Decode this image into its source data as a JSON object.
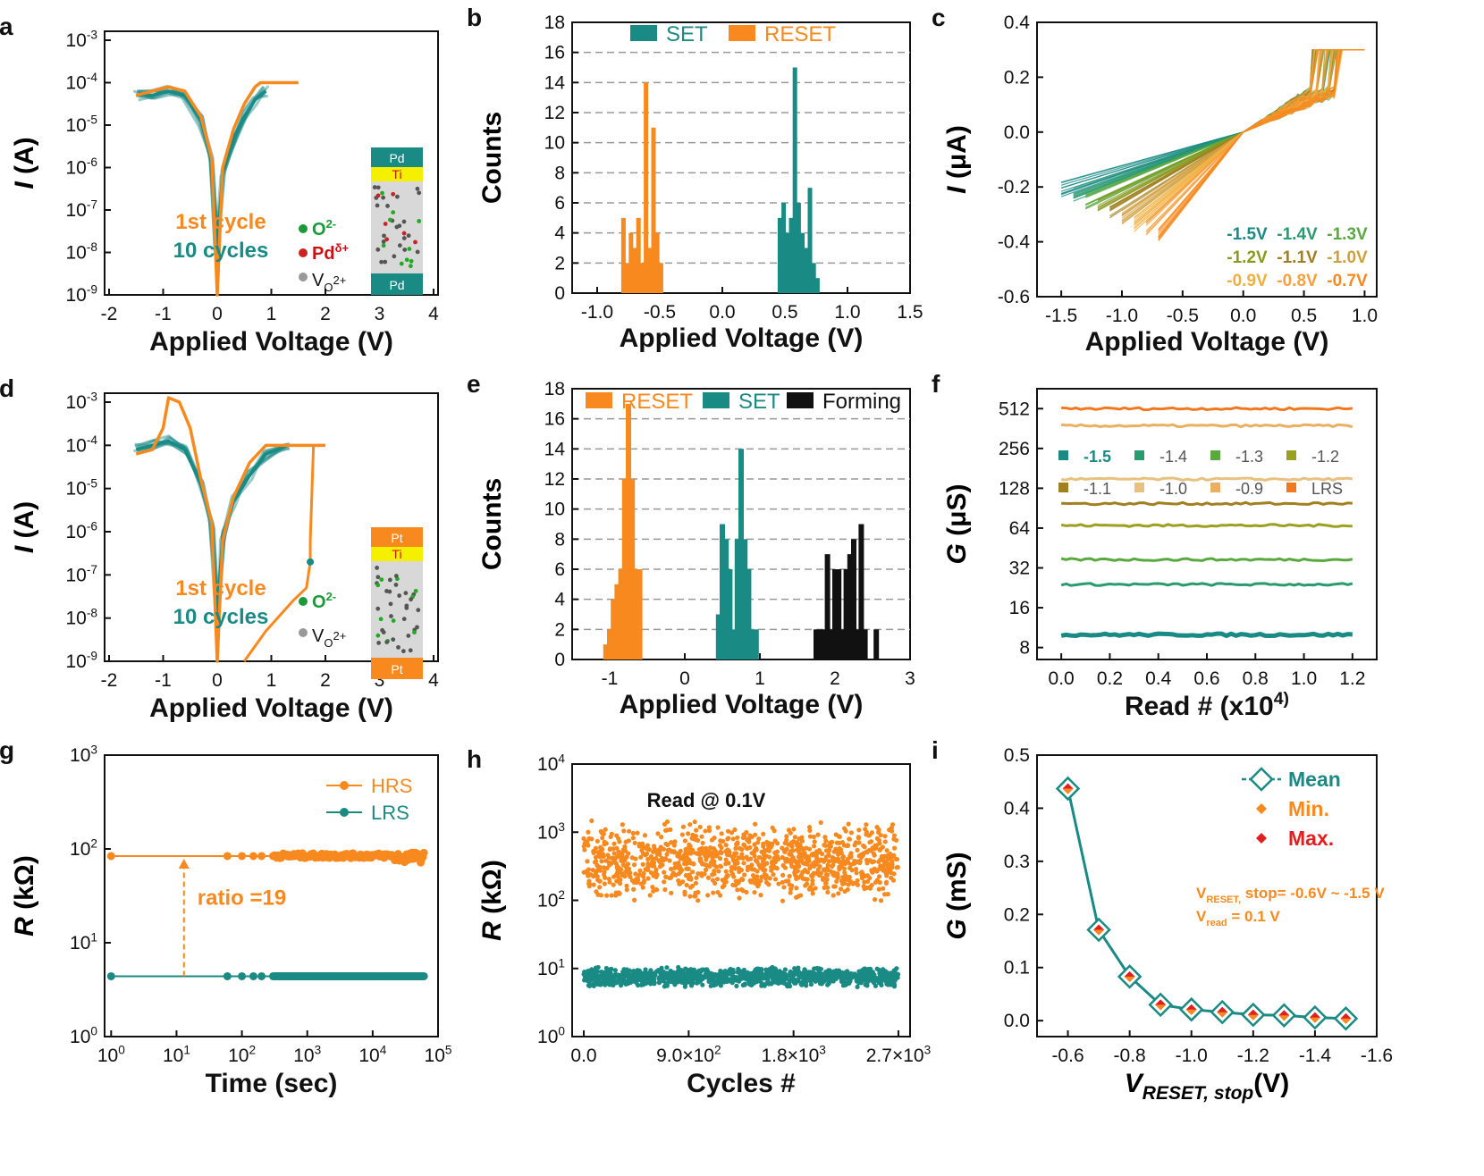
{
  "colors": {
    "teal": "#1a8a85",
    "orange": "#f7891f",
    "red": "#e02020",
    "black": "#111111"
  },
  "panels": [
    {
      "letter": "a",
      "type": "line-log",
      "xlabel": "Applied Voltage (V)",
      "ylabel": "I (A)",
      "xticks": [
        "-2",
        "-1",
        "0",
        "1",
        "2",
        "3",
        "4"
      ],
      "yticks": [
        "10^-9",
        "10^-8",
        "10^-7",
        "10^-6",
        "10^-5",
        "10^-4",
        "10^-3"
      ],
      "legend": [
        "1st cycle",
        "10 cycles"
      ],
      "inset_layers": [
        "Pd",
        "Ti",
        "Pd"
      ],
      "inset_legend": [
        "O^2-",
        "Pd^δ+",
        "V_O^2+"
      ]
    },
    {
      "letter": "b",
      "type": "bar",
      "xlabel": "Applied Voltage (V)",
      "ylabel": "Counts",
      "xticks": [
        "-1.0",
        "-0.5",
        "0.0",
        "0.5",
        "1.0",
        "1.5"
      ],
      "yticks": [
        "0",
        "2",
        "4",
        "6",
        "8",
        "10",
        "12",
        "14",
        "16",
        "18"
      ],
      "legend": [
        "SET",
        "RESET"
      ]
    },
    {
      "letter": "c",
      "type": "line",
      "xlabel": "Applied Voltage (V)",
      "ylabel": "I (μA)",
      "xticks": [
        "-1.5",
        "-1.0",
        "-0.5",
        "0.0",
        "0.5",
        "1.0"
      ],
      "yticks": [
        "-0.6",
        "-0.4",
        "-0.2",
        "0.0",
        "0.2",
        "0.4"
      ],
      "legend": [
        "-1.5V",
        "-1.4V",
        "-1.3V",
        "-1.2V",
        "-1.1V",
        "-1.0V",
        "-0.9V",
        "-0.8V",
        "-0.7V"
      ]
    },
    {
      "letter": "d",
      "type": "line-log",
      "xlabel": "Applied Voltage (V)",
      "ylabel": "I (A)",
      "xticks": [
        "-2",
        "-1",
        "0",
        "1",
        "2",
        "3",
        "4"
      ],
      "yticks": [
        "10^-9",
        "10^-8",
        "10^-7",
        "10^-6",
        "10^-5",
        "10^-4",
        "10^-3"
      ],
      "legend": [
        "1st cycle",
        "10 cycles"
      ],
      "inset_layers": [
        "Pt",
        "Ti",
        "Pt"
      ],
      "inset_legend": [
        "O^2-",
        "V_O^2+"
      ]
    },
    {
      "letter": "e",
      "type": "bar",
      "xlabel": "Applied Voltage (V)",
      "ylabel": "Counts",
      "xticks": [
        "-1",
        "0",
        "1",
        "2",
        "3"
      ],
      "yticks": [
        "0",
        "2",
        "4",
        "6",
        "8",
        "10",
        "12",
        "14",
        "16",
        "18"
      ],
      "legend": [
        "RESET",
        "SET",
        "Forming"
      ]
    },
    {
      "letter": "f",
      "type": "scatter-log",
      "xlabel": "Read # (x10^4)",
      "ylabel": "G (μS)",
      "xticks": [
        "0.0",
        "0.2",
        "0.4",
        "0.6",
        "0.8",
        "1.0",
        "1.2"
      ],
      "yticks": [
        "8",
        "16",
        "32",
        "64",
        "128",
        "256",
        "512"
      ],
      "legend": [
        "-1.5",
        "-1.4",
        "-1.3",
        "-1.2",
        "-1.1",
        "-1.0",
        "-0.9",
        "LRS"
      ]
    },
    {
      "letter": "g",
      "type": "line-log",
      "xlabel": "Time (sec)",
      "ylabel": "R (kΩ)",
      "xticks": [
        "10^0",
        "10^1",
        "10^2",
        "10^3",
        "10^4",
        "10^5"
      ],
      "yticks": [
        "10^0",
        "10^1",
        "10^2",
        "10^3"
      ],
      "legend": [
        "HRS",
        "LRS"
      ],
      "annotation": "ratio =19"
    },
    {
      "letter": "h",
      "type": "scatter-log",
      "xlabel": "Cycles #",
      "ylabel": "R (kΩ)",
      "xticks": [
        "0.0",
        "9.0×10^2",
        "1.8×10^3",
        "2.7×10^3"
      ],
      "yticks": [
        "10^0",
        "10^1",
        "10^2",
        "10^3",
        "10^4"
      ],
      "annotation": "Read @ 0.1V"
    },
    {
      "letter": "i",
      "type": "line",
      "xlabel": "V_RESET, stop(V)",
      "ylabel": "G (mS)",
      "xticks": [
        "-0.6",
        "-0.8",
        "-1.0",
        "-1.2",
        "-1.4",
        "-1.6"
      ],
      "yticks": [
        "0.0",
        "0.1",
        "0.2",
        "0.3",
        "0.4",
        "0.5"
      ],
      "legend": [
        "Mean",
        "Min.",
        "Max."
      ],
      "annotation": [
        "V_RESET, stop=  -0.6V ~ -1.5 V",
        "V_read = 0.1 V"
      ]
    }
  ],
  "chart_data": [
    {
      "panel": "a",
      "type": "line",
      "xlim": [
        -2,
        4
      ],
      "ylim_log10": [
        -9,
        -3
      ],
      "series": [
        {
          "name": "1st cycle",
          "color": "orange",
          "x": [
            -1.5,
            -1.2,
            -0.9,
            -0.6,
            -0.3,
            -0.1,
            0,
            0.1,
            0.3,
            0.5,
            0.7,
            0.8,
            1.5
          ],
          "log10_y": [
            -4.3,
            -4.2,
            -4.1,
            -4.2,
            -4.8,
            -5.8,
            -9,
            -6.0,
            -5.1,
            -4.5,
            -4.1,
            -4.0,
            -4.0
          ]
        },
        {
          "name": "10 cycles",
          "color": "teal",
          "x": [
            -1.5,
            -1.2,
            -0.9,
            -0.6,
            -0.3,
            -0.1,
            0,
            0.1,
            0.3,
            0.5,
            0.7,
            0.9
          ],
          "log10_y": [
            -4.3,
            -4.3,
            -4.2,
            -4.3,
            -4.9,
            -5.8,
            -8,
            -6.1,
            -5.3,
            -4.8,
            -4.4,
            -4.2
          ]
        }
      ]
    },
    {
      "panel": "b",
      "type": "bar",
      "xlim": [
        -1.2,
        1.5
      ],
      "ylim": [
        0,
        18
      ],
      "series": [
        {
          "name": "RESET",
          "color": "orange",
          "x": [
            -0.79,
            -0.76,
            -0.73,
            -0.7,
            -0.67,
            -0.64,
            -0.61,
            -0.58,
            -0.55,
            -0.52,
            -0.49
          ],
          "values": [
            5,
            2,
            4,
            3,
            5,
            2,
            14,
            3,
            11,
            4,
            2
          ]
        },
        {
          "name": "SET",
          "color": "teal",
          "x": [
            0.46,
            0.49,
            0.52,
            0.55,
            0.58,
            0.61,
            0.64,
            0.67,
            0.7,
            0.73,
            0.76
          ],
          "values": [
            5,
            6,
            4,
            5,
            15,
            6,
            4,
            3,
            7,
            2,
            1
          ]
        }
      ]
    },
    {
      "panel": "c",
      "type": "line",
      "xlim": [
        -1.7,
        1.1
      ],
      "ylim": [
        -0.6,
        0.4
      ],
      "series_names": [
        "-1.5V",
        "-1.4V",
        "-1.3V",
        "-1.2V",
        "-1.1V",
        "-1.0V",
        "-0.9V",
        "-0.8V",
        "-0.7V"
      ],
      "reset_stop_V": [
        -1.5,
        -1.4,
        -1.3,
        -1.2,
        -1.1,
        -1.0,
        -0.9,
        -0.8,
        -0.7
      ],
      "compliance_uA": 0.3
    },
    {
      "panel": "d",
      "type": "line",
      "xlim": [
        -2,
        4
      ],
      "ylim_log10": [
        -9,
        -3
      ],
      "series": [
        {
          "name": "1st cycle",
          "color": "orange",
          "x": [
            -1.5,
            -1.2,
            -1.0,
            -0.9,
            -0.7,
            -0.5,
            -0.3,
            -0.1,
            0,
            0.1,
            0.3,
            0.6,
            0.9,
            1.7,
            1.75,
            2.0
          ],
          "log10_y": [
            -4.2,
            -4.1,
            -3.6,
            -2.9,
            -3.0,
            -3.6,
            -4.8,
            -5.8,
            -9,
            -6.2,
            -5.2,
            -4.4,
            -4.0,
            -4.0,
            -4.0,
            -4.0
          ]
        },
        {
          "name": "10 cycles",
          "color": "teal",
          "x": [
            -1.5,
            -1.2,
            -0.9,
            -0.6,
            -0.3,
            -0.1,
            0,
            0.1,
            0.3,
            0.6,
            0.9,
            1.3
          ],
          "log10_y": [
            -4.1,
            -4.0,
            -3.9,
            -4.1,
            -4.9,
            -5.8,
            -8,
            -6.1,
            -5.3,
            -4.7,
            -4.2,
            -4.0
          ]
        }
      ]
    },
    {
      "panel": "e",
      "type": "bar",
      "xlim": [
        -1.5,
        3
      ],
      "ylim": [
        0,
        18
      ],
      "series": [
        {
          "name": "RESET",
          "color": "orange",
          "x": [
            -1.05,
            -1.0,
            -0.95,
            -0.9,
            -0.85,
            -0.8,
            -0.75,
            -0.7,
            -0.65,
            -0.6
          ],
          "values": [
            1,
            2,
            4,
            5,
            6,
            12,
            17,
            12,
            6,
            6
          ]
        },
        {
          "name": "SET",
          "color": "teal",
          "x": [
            0.45,
            0.5,
            0.55,
            0.6,
            0.65,
            0.7,
            0.75,
            0.8,
            0.85,
            0.9,
            0.95
          ],
          "values": [
            3,
            9,
            8,
            6,
            2,
            8,
            14,
            8,
            6,
            2,
            2
          ]
        },
        {
          "name": "Forming",
          "color": "black",
          "x": [
            1.75,
            1.8,
            1.85,
            1.9,
            1.95,
            2.0,
            2.05,
            2.1,
            2.15,
            2.2,
            2.25,
            2.3,
            2.35,
            2.4,
            2.55
          ],
          "values": [
            2,
            2,
            2,
            7,
            2,
            6,
            6,
            2,
            6,
            7,
            8,
            2,
            9,
            2,
            2
          ]
        }
      ]
    },
    {
      "panel": "f",
      "type": "scatter",
      "xlim": [
        -0.1,
        1.3
      ],
      "ylim_log2": [
        2.7,
        9.5
      ],
      "series": [
        {
          "name": "-1.5",
          "G_uS": 10
        },
        {
          "name": "-1.4",
          "G_uS": 24
        },
        {
          "name": "-1.3",
          "G_uS": 37
        },
        {
          "name": "-1.2",
          "G_uS": 67
        },
        {
          "name": "-1.1",
          "G_uS": 98
        },
        {
          "name": "-1.0",
          "G_uS": 150
        },
        {
          "name": "-0.9",
          "G_uS": 380
        },
        {
          "name": "LRS",
          "G_uS": 512
        }
      ]
    },
    {
      "panel": "g",
      "type": "line",
      "xlim_log10": [
        -0.1,
        5
      ],
      "ylim_log10": [
        0,
        3
      ],
      "series": [
        {
          "name": "HRS",
          "color": "orange",
          "R_kOhm": 84
        },
        {
          "name": "LRS",
          "color": "teal",
          "R_kOhm": 4.4
        }
      ],
      "ratio": 19
    },
    {
      "panel": "h",
      "type": "scatter",
      "xlim": [
        -100,
        2800
      ],
      "ylim_log10": [
        0,
        4
      ],
      "series": [
        {
          "name": "HRS",
          "color": "orange",
          "median_R_kOhm": 380
        },
        {
          "name": "LRS",
          "color": "teal",
          "median_R_kOhm": 7.5
        }
      ],
      "cycles": 2700
    },
    {
      "panel": "i",
      "type": "line",
      "xlim": [
        -0.5,
        -1.6
      ],
      "ylim": [
        0,
        0.5
      ],
      "x": [
        -0.6,
        -0.7,
        -0.8,
        -0.9,
        -1.0,
        -1.1,
        -1.2,
        -1.3,
        -1.4,
        -1.5
      ],
      "series": [
        {
          "name": "Mean",
          "values": [
            0.437,
            0.171,
            0.083,
            0.03,
            0.021,
            0.016,
            0.011,
            0.01,
            0.006,
            0.004
          ]
        }
      ]
    }
  ]
}
